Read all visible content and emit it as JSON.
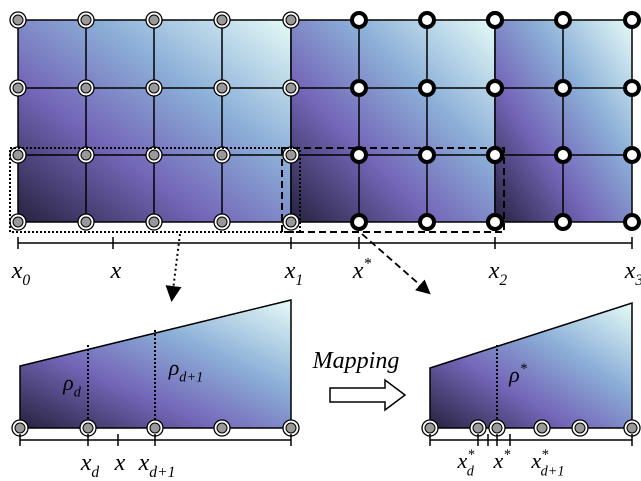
{
  "top_axis": {
    "labels": [
      {
        "base": "x",
        "sub": "0"
      },
      {
        "base": "x"
      },
      {
        "base": "x",
        "sub": "1"
      },
      {
        "base": "x",
        "sup": "*"
      },
      {
        "base": "x",
        "sub": "2"
      },
      {
        "base": "x",
        "sub": "3"
      }
    ]
  },
  "bottom_left": {
    "densities": [
      {
        "base": "ρ",
        "sub": "d"
      },
      {
        "base": "ρ",
        "sub": "d+1"
      }
    ],
    "axis_labels": [
      {
        "base": "x",
        "sub": "d"
      },
      {
        "base": "x"
      },
      {
        "base": "x",
        "sub": "d+1"
      }
    ]
  },
  "mapping": {
    "label": "Mapping"
  },
  "bottom_right": {
    "density": {
      "base": "ρ",
      "sup": "*"
    },
    "axis_labels": [
      {
        "base": "x",
        "sub": "d",
        "sup": "*"
      },
      {
        "base": "x",
        "sup": "*"
      },
      {
        "base": "x",
        "sub": "d+1",
        "sup": "*"
      }
    ]
  }
}
